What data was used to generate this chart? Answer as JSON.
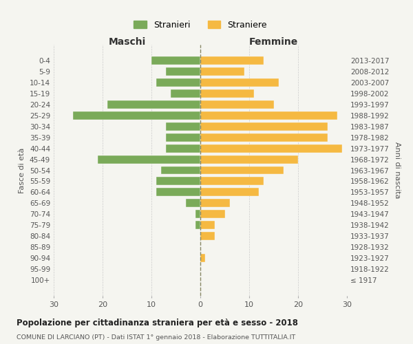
{
  "age_groups": [
    "0-4",
    "5-9",
    "10-14",
    "15-19",
    "20-24",
    "25-29",
    "30-34",
    "35-39",
    "40-44",
    "45-49",
    "50-54",
    "55-59",
    "60-64",
    "65-69",
    "70-74",
    "75-79",
    "80-84",
    "85-89",
    "90-94",
    "95-99",
    "100+"
  ],
  "birth_years": [
    "2013-2017",
    "2008-2012",
    "2003-2007",
    "1998-2002",
    "1993-1997",
    "1988-1992",
    "1983-1987",
    "1978-1982",
    "1973-1977",
    "1968-1972",
    "1963-1967",
    "1958-1962",
    "1953-1957",
    "1948-1952",
    "1943-1947",
    "1938-1942",
    "1933-1937",
    "1928-1932",
    "1923-1927",
    "1918-1922",
    "≤ 1917"
  ],
  "males": [
    10,
    7,
    9,
    6,
    19,
    26,
    7,
    7,
    7,
    21,
    8,
    9,
    9,
    3,
    1,
    1,
    0,
    0,
    0,
    0,
    0
  ],
  "females": [
    13,
    9,
    16,
    11,
    15,
    28,
    26,
    26,
    29,
    20,
    17,
    13,
    12,
    6,
    5,
    3,
    3,
    0,
    1,
    0,
    0
  ],
  "male_color": "#7aaa59",
  "female_color": "#f5b942",
  "male_label": "Stranieri",
  "female_label": "Straniere",
  "title_main": "Popolazione per cittadinanza straniera per età e sesso - 2018",
  "title_sub": "COMUNE DI LARCIANO (PT) - Dati ISTAT 1° gennaio 2018 - Elaborazione TUTTITALIA.IT",
  "xlabel_left": "Maschi",
  "xlabel_right": "Femmine",
  "ylabel_left": "Fasce di età",
  "ylabel_right": "Anni di nascita",
  "xlim": 30,
  "background_color": "#f5f5f0",
  "grid_color": "#cccccc"
}
